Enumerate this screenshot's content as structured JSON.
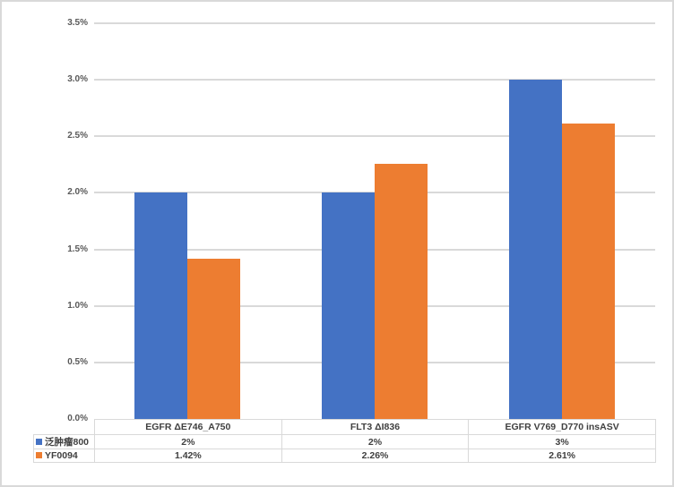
{
  "chart": {
    "title": "",
    "y_axis": {
      "tick_labels": [
        "3.5%",
        "3.0%",
        "2.5%",
        "2.0%",
        "1.5%",
        "1.0%",
        "0.5%",
        "0.0%"
      ]
    },
    "colors": {
      "series1": "#4472C4",
      "series2": "#ED7D31",
      "gridline": "#D9D9D9",
      "frame_border": "#D9D9D9",
      "axis_text": "#595959",
      "table_text": "#404040"
    }
  },
  "chart_data": {
    "type": "bar",
    "categories": [
      "EGFR ΔE746_A750",
      "FLT3 ΔI836",
      "EGFR V769_D770 insASV"
    ],
    "series": [
      {
        "name": "泛肿瘤800",
        "color": "#4472C4",
        "values": [
          2,
          2,
          3
        ],
        "labels": [
          "2%",
          "2%",
          "3%"
        ]
      },
      {
        "name": "YF0094",
        "color": "#ED7D31",
        "values": [
          1.42,
          2.26,
          2.61
        ],
        "labels": [
          "1.42%",
          "2.26%",
          "2.61%"
        ]
      }
    ],
    "title": "",
    "xlabel": "",
    "ylabel": "",
    "ylim": [
      0,
      3.5
    ],
    "ytick_step": 0.5,
    "ytick_format": "percent",
    "grid": true,
    "legend_position": "data-table-below-chart"
  }
}
